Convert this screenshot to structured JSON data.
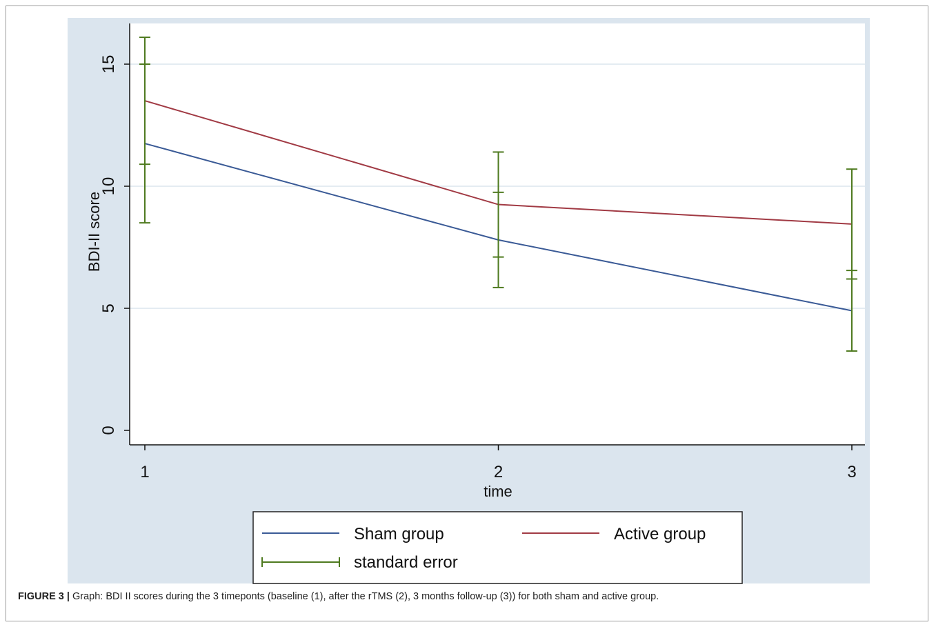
{
  "caption": {
    "label": "FIGURE 3 |",
    "text": " Graph: BDI II scores during the 3 timeponts (baseline (1), after the rTMS (2), 3 months follow-up (3)) for both sham and active group."
  },
  "legend": {
    "placement": "bottom",
    "items": [
      {
        "label": "Sham group",
        "color": "#3a5a96",
        "kind": "line"
      },
      {
        "label": "Active group",
        "color": "#a13a44",
        "kind": "line"
      },
      {
        "label": "standard error",
        "color": "#4e7a1f",
        "kind": "errorbar"
      }
    ]
  },
  "chart_data": {
    "type": "line",
    "title": "",
    "xlabel": "time",
    "ylabel": "BDI-II score",
    "x": [
      1,
      2,
      3
    ],
    "x_ticks": [
      "1",
      "2",
      "3"
    ],
    "y_ticks": [
      "0",
      "5",
      "10",
      "15"
    ],
    "y_tick_values": [
      0,
      5,
      10,
      15
    ],
    "xlim": [
      1,
      3
    ],
    "ylim": [
      0,
      16.5
    ],
    "grid": true,
    "series": [
      {
        "name": "Sham group",
        "color": "#3a5a96",
        "values": [
          11.75,
          7.8,
          4.9
        ],
        "se_low": [
          8.5,
          5.85,
          3.25
        ],
        "se_high": [
          15.0,
          9.75,
          6.55
        ]
      },
      {
        "name": "Active group",
        "color": "#a13a44",
        "values": [
          13.5,
          9.25,
          8.45
        ],
        "se_low": [
          10.9,
          7.1,
          6.2
        ],
        "se_high": [
          16.1,
          11.4,
          10.7
        ]
      }
    ],
    "error_bar_color": "#4e7a1f"
  }
}
